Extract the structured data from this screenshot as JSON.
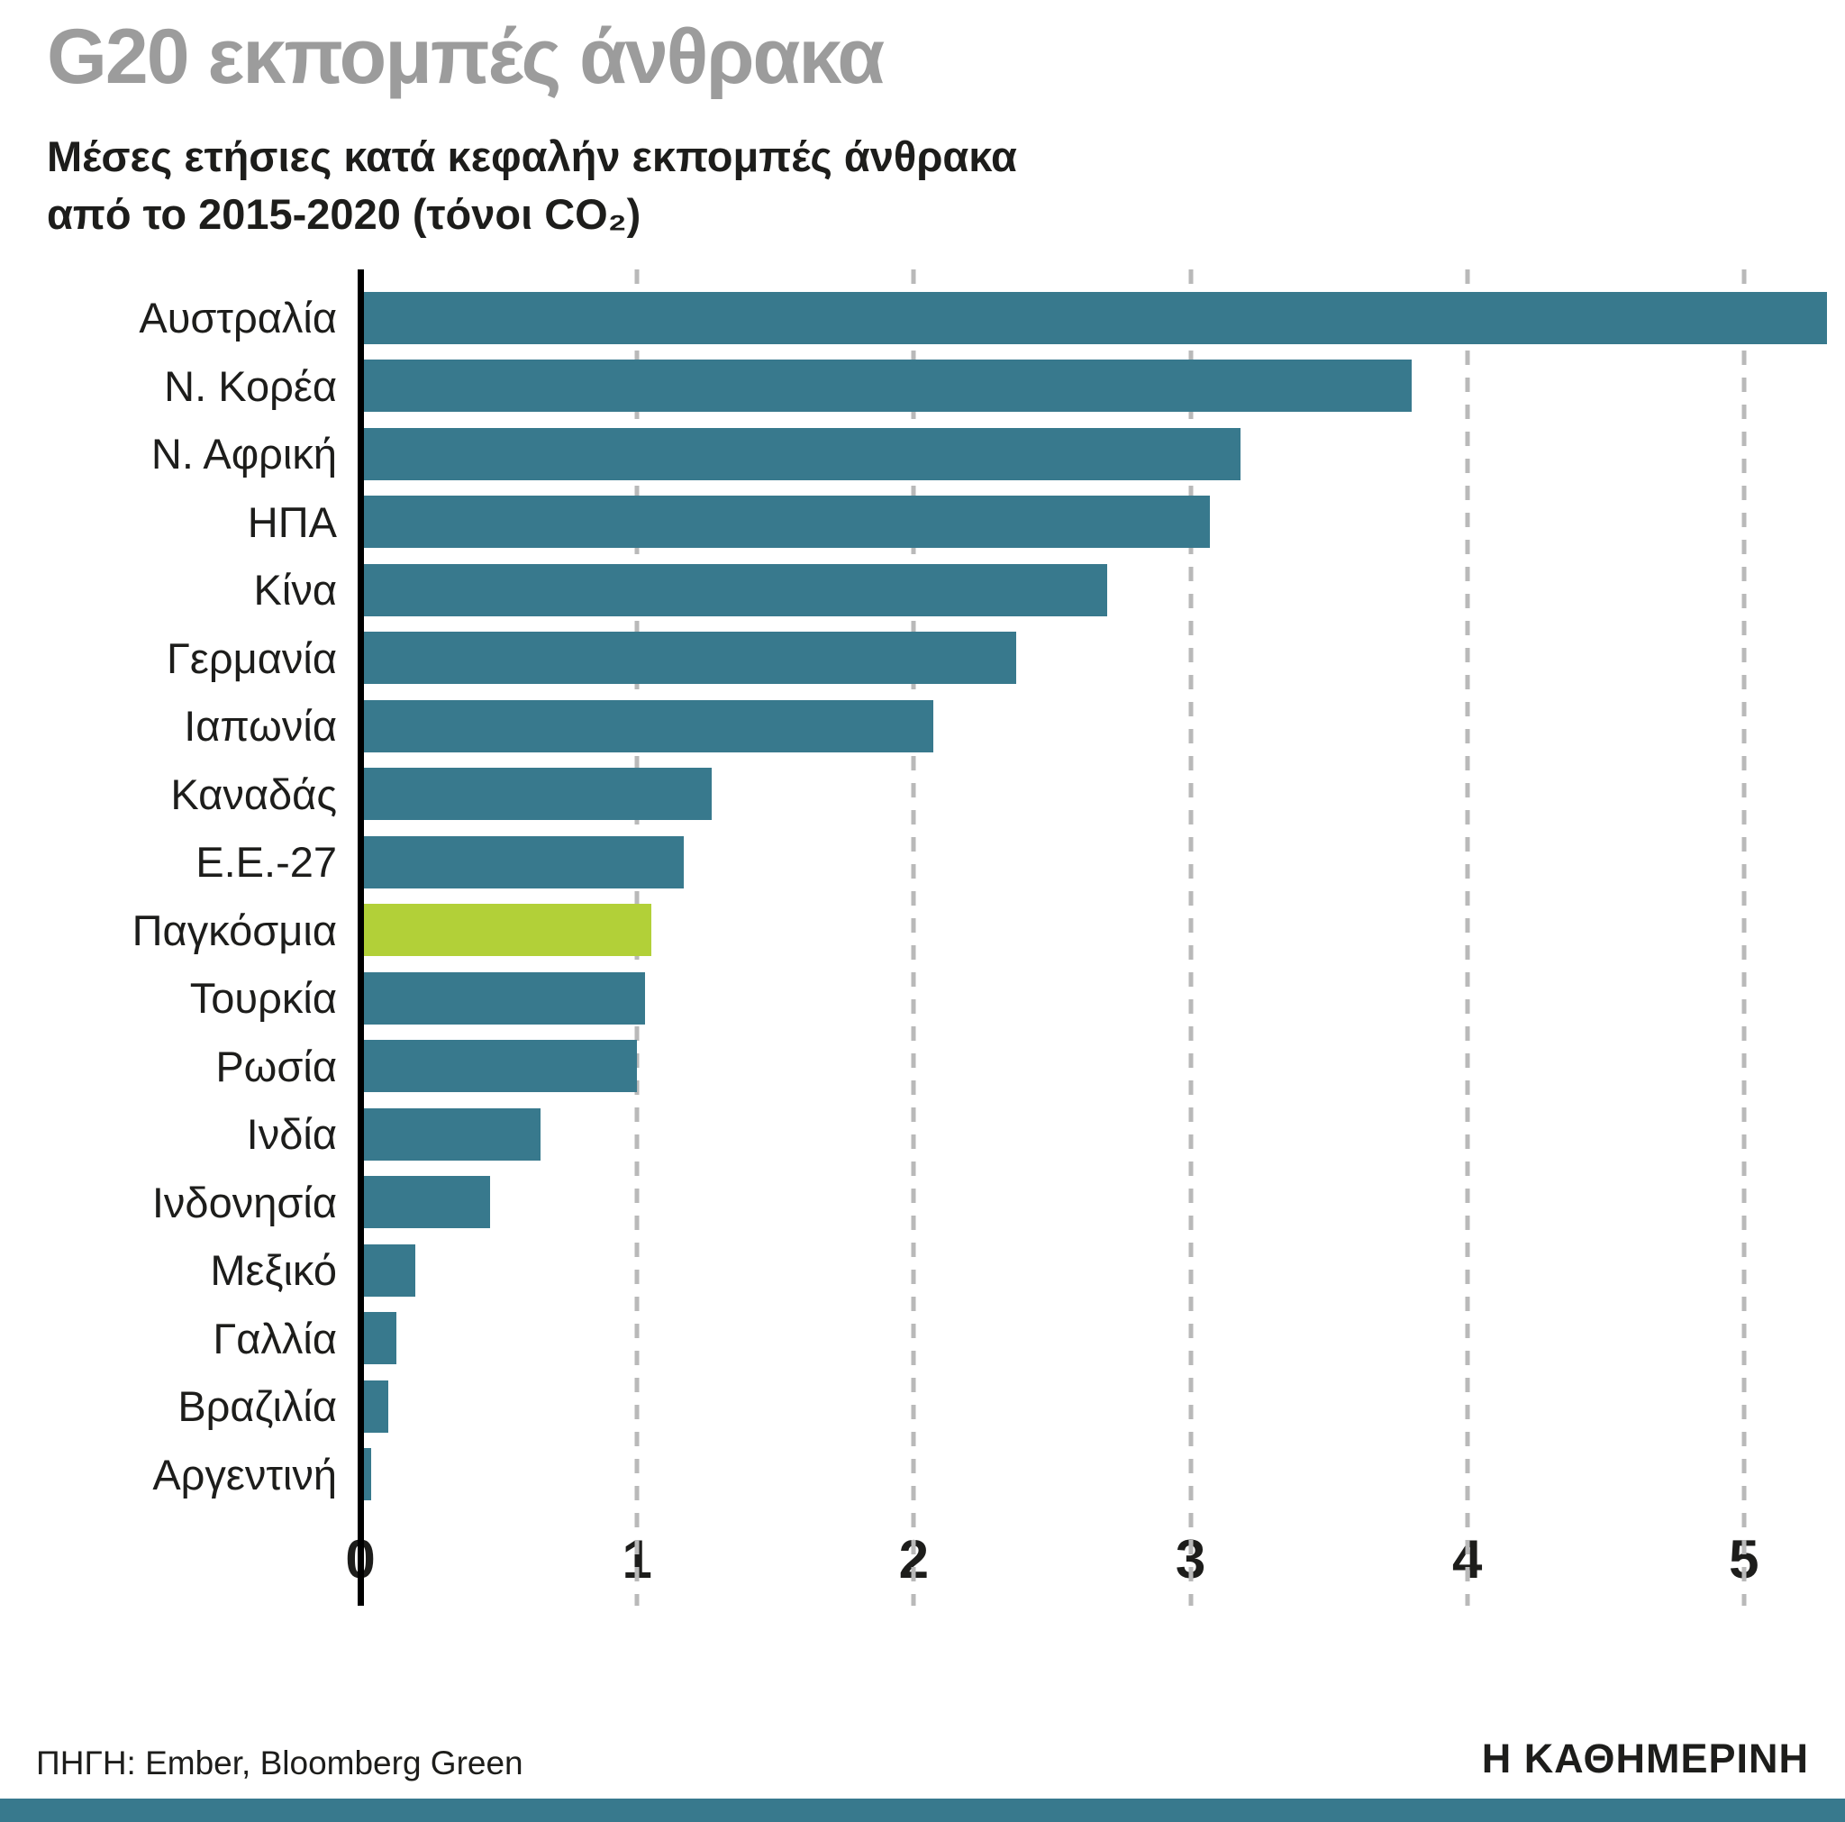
{
  "header": {
    "title": "G20 εκπομπές άνθρακα",
    "subtitle_line1": "Μέσες ετήσιες κατά κεφαλήν εκπομπές άνθρακα",
    "subtitle_line2": "από το 2015-2020 (τόνοι CO₂)"
  },
  "chart_data": {
    "type": "bar",
    "orientation": "horizontal",
    "title": "G20 εκπομπές άνθρακα",
    "subtitle": "Μέσες ετήσιες κατά κεφαλήν εκπομπές άνθρακα από το 2015-2020 (τόνοι CO₂)",
    "categories": [
      "Αυστραλία",
      "Ν. Κορέα",
      "Ν. Αφρική",
      "ΗΠΑ",
      "Κίνα",
      "Γερμανία",
      "Ιαπωνία",
      "Καναδάς",
      "Ε.Ε.-27",
      "Παγκόσμια",
      "Τουρκία",
      "Ρωσία",
      "Ινδία",
      "Ινδονησία",
      "Μεξικό",
      "Γαλλία",
      "Βραζιλία",
      "Αργεντινή"
    ],
    "values": [
      5.3,
      3.8,
      3.18,
      3.07,
      2.7,
      2.37,
      2.07,
      1.27,
      1.17,
      1.05,
      1.03,
      1.0,
      0.65,
      0.47,
      0.2,
      0.13,
      0.1,
      0.04
    ],
    "highlight_category": "Παγκόσμια",
    "highlight_index": 9,
    "xticks": [
      0,
      1,
      2,
      3,
      4,
      5
    ],
    "xlim": [
      0,
      5.3
    ],
    "grid": "dashed-vertical",
    "legend": "none",
    "bar_color": "#38798d",
    "highlight_color": "#b2d038",
    "gridline_color": "#b9b9b9",
    "axis_color": "#000000"
  },
  "footer": {
    "source": "ΠΗΓΗ: Ember, Bloomberg Green",
    "brand": "Η ΚΑΘΗΜΕΡΙΝΗ"
  }
}
